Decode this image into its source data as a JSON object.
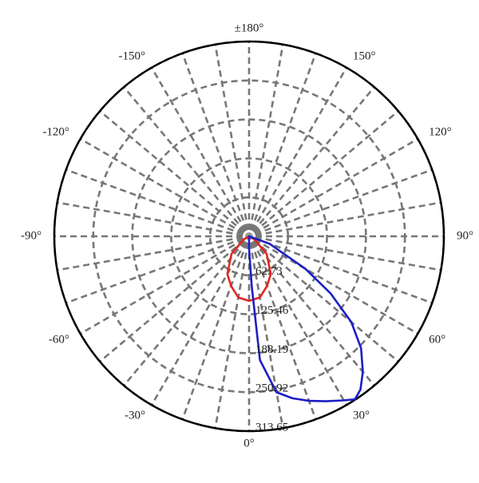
{
  "chart_data": {
    "type": "polar",
    "theta_zero": "bottom",
    "rlim": [
      0,
      313.65
    ],
    "rticks": [
      62.73,
      125.46,
      188.19,
      250.92,
      313.65
    ],
    "angleticks": [
      {
        "value": 180,
        "label": "±180°"
      },
      {
        "value": 150,
        "label": "150°"
      },
      {
        "value": 120,
        "label": "120°"
      },
      {
        "value": 90,
        "label": "90°"
      },
      {
        "value": 60,
        "label": "60°"
      },
      {
        "value": 30,
        "label": "30°"
      },
      {
        "value": 0,
        "label": "0°"
      },
      {
        "value": -30,
        "label": "-30°"
      },
      {
        "value": -60,
        "label": "-60°"
      },
      {
        "value": -90,
        "label": "-90°"
      },
      {
        "value": -120,
        "label": "-120°"
      },
      {
        "value": -150,
        "label": "-150°"
      }
    ],
    "grid": true,
    "series": [
      {
        "color": "#e3261f",
        "theta": [
          -90,
          -60,
          -45,
          -30,
          -20,
          -10,
          0,
          10,
          20,
          30,
          45,
          60,
          90
        ],
        "values": [
          0,
          10,
          40,
          70,
          85,
          100,
          104,
          100,
          85,
          70,
          40,
          10,
          0
        ]
      },
      {
        "color": "#1c1fc4",
        "theta": [
          -10,
          0,
          3,
          5,
          10,
          15,
          20,
          25,
          30,
          33,
          36,
          40,
          45,
          50,
          55,
          60,
          70,
          90
        ],
        "values": [
          0,
          20,
          80,
          200,
          255,
          270,
          282,
          293,
          305,
          313,
          305,
          285,
          255,
          215,
          160,
          105,
          35,
          0
        ]
      }
    ]
  }
}
